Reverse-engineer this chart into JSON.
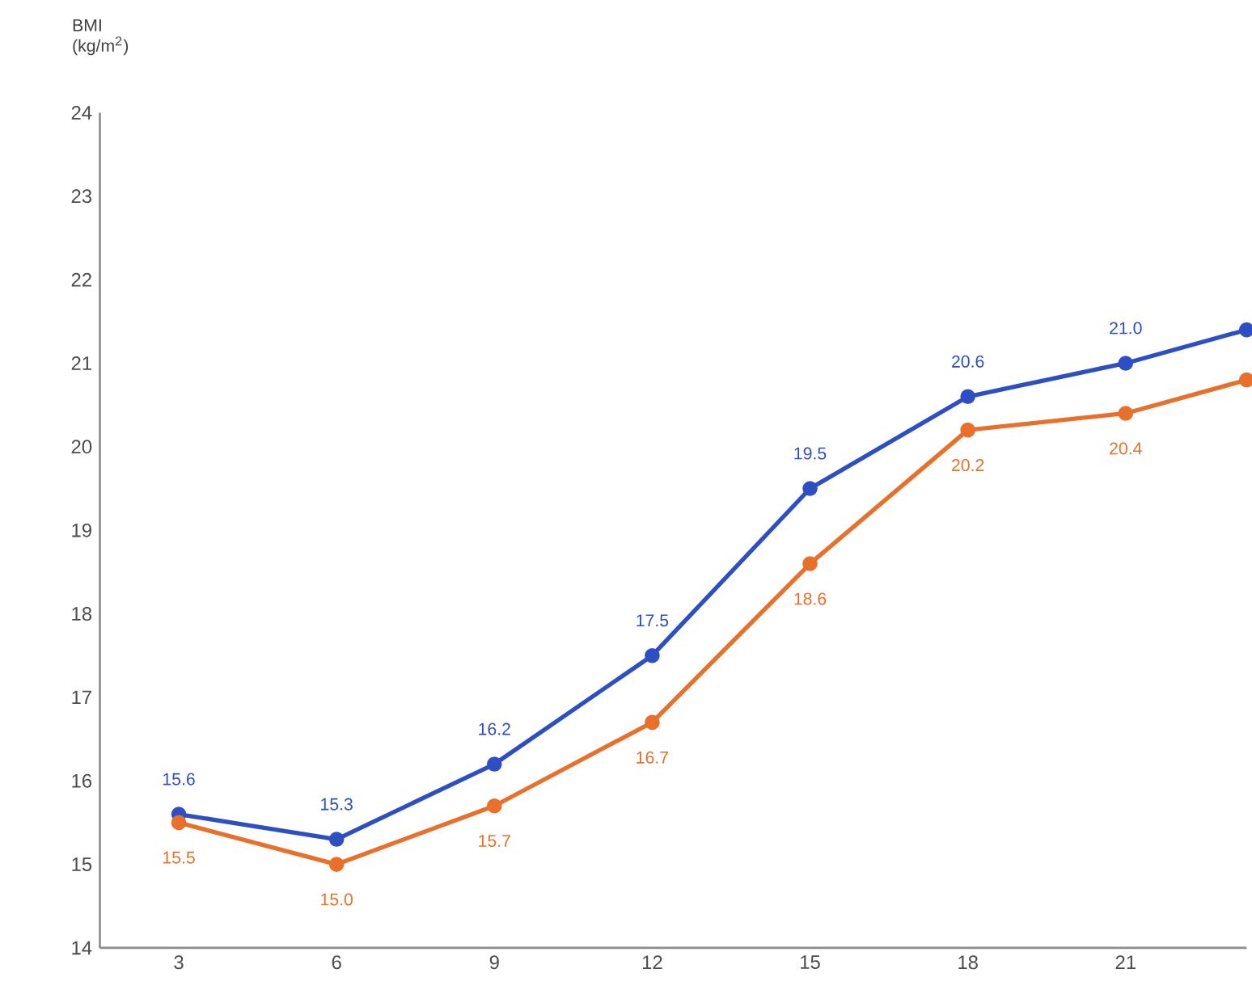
{
  "chart_data": {
    "type": "line",
    "ylabel": "BMI (kg/m$^{2}$)",
    "x": [
      3,
      6,
      9,
      12,
      15,
      18,
      21,
      23.3
    ],
    "series": [
      {
        "color": "#2e4fc4",
        "values": [
          15.6,
          15.3,
          16.2,
          17.5,
          19.5,
          20.6,
          21.0,
          21.4
        ],
        "value_labels": [
          "15.6",
          "15.3",
          "16.2",
          "17.5",
          "19.5",
          "20.6",
          "21.0",
          null
        ]
      },
      {
        "color": "#e8702a",
        "values": [
          15.5,
          15.0,
          15.7,
          16.7,
          18.6,
          20.2,
          20.4,
          20.8
        ],
        "value_labels": [
          "15.5",
          "15.0",
          "15.7",
          "16.7",
          "18.6",
          "20.2",
          "20.4",
          null
        ]
      }
    ],
    "xlim": [
      1.5,
      23.3
    ],
    "ylim": [
      14,
      24
    ],
    "xticks": [
      3,
      6,
      9,
      12,
      15,
      18,
      21
    ],
    "yticks": [
      14,
      15,
      16,
      17,
      18,
      19,
      20,
      21,
      22,
      23,
      24
    ],
    "marker": "circle",
    "line_style": "solid",
    "grid": false
  }
}
